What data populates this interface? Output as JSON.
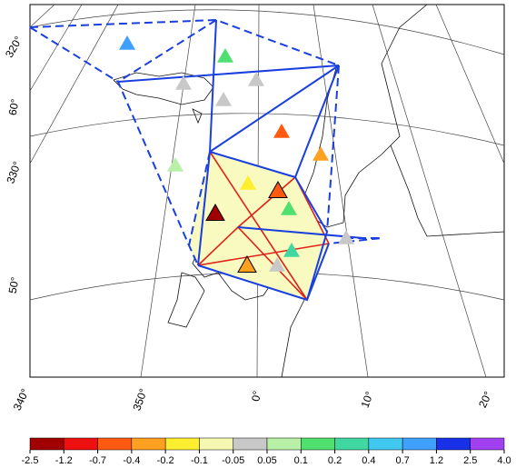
{
  "map": {
    "labels": [
      "320°",
      "330°",
      "340°",
      "350°",
      "0°",
      "10°",
      "20°",
      "60°",
      "50°"
    ]
  },
  "stations": [
    {
      "value": 0.9
    },
    {
      "value": 0.15
    },
    {
      "value": 0
    },
    {
      "value": 0
    },
    {
      "value": 0
    },
    {
      "value": -0.5
    },
    {
      "value": -0.3
    },
    {
      "value": 0.07
    },
    {
      "value": -0.15
    },
    {
      "value": -0.6
    },
    {
      "value": -1.5
    },
    {
      "value": 0.15
    },
    {
      "value": 0.3
    },
    {
      "value": 0
    },
    {
      "value": -0.3
    },
    {
      "value": 0
    }
  ],
  "colorbar": {
    "ticks": [
      -2.5,
      -1.2,
      -0.7,
      -0.4,
      -0.2,
      -0.1,
      -0.05,
      0.05,
      0.1,
      0.2,
      0.4,
      0.7,
      1.2,
      2.5,
      {
        "value": 4,
        "label": "4.0"
      }
    ],
    "colors": [
      "#a00000",
      "#ee1010",
      "#ff5a10",
      "#ffa020",
      "#ffee30",
      "#f4f8b0",
      "#c8c8c8",
      "#b8f0a8",
      "#50e070",
      "#40d8a0",
      "#40c8f0",
      "#40a0ff",
      "#1830e8",
      "#a040f0"
    ]
  }
}
